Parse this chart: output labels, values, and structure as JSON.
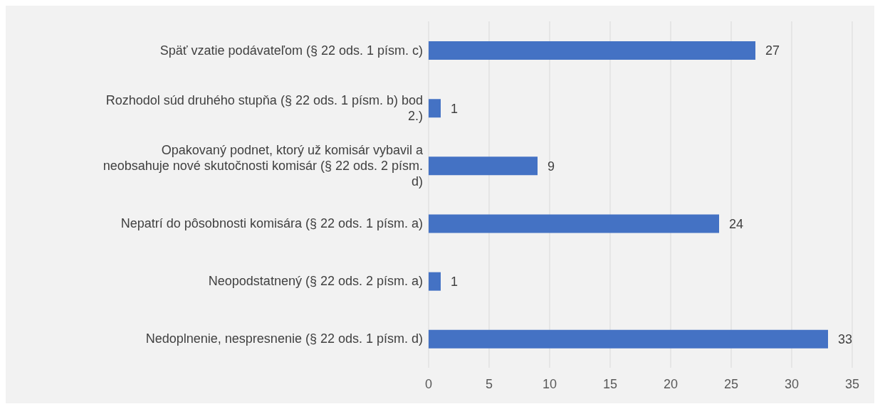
{
  "chart_data": {
    "type": "bar",
    "orientation": "horizontal",
    "categories": [
      "Späť vzatie podávateľom (§ 22 ods. 1 písm. c)",
      "Rozhodol súd druhého stupňa (§ 22 ods. 1 písm. b) bod 2.)",
      "Opakovaný podnet, ktorý už komisár vybavil a neobsahuje nové skutočnosti komisár (§ 22 ods. 2 písm. d)",
      "Nepatrí do pôsobnosti komisára (§ 22 ods. 1 písm. a)",
      "Neopodstatnený (§ 22 ods. 2 písm. a)",
      "Nedoplnenie, nespresnenie (§ 22 ods. 1 písm. d)"
    ],
    "values": [
      27,
      1,
      9,
      24,
      1,
      33
    ],
    "color": "#4472c4",
    "xlim": [
      0,
      35
    ],
    "xticks": [
      0,
      5,
      10,
      15,
      20,
      25,
      30,
      35
    ],
    "grid": "x",
    "data_labels": true
  }
}
